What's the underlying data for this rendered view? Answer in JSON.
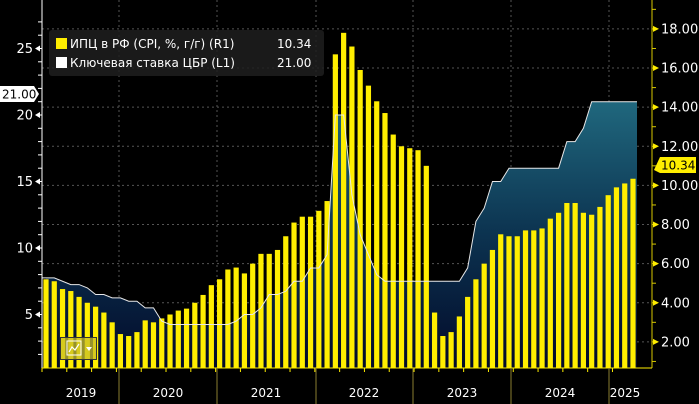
{
  "legend": {
    "cpi": {
      "label": "ИПЦ в РФ (CPI, %, г/г) (R1)",
      "value": "10.34",
      "color": "#ffee00"
    },
    "rate": {
      "label": "Ключевая ставка ЦБР (L1)",
      "value": "21.00",
      "color": "#ffffff"
    }
  },
  "tags": {
    "left": "21.00",
    "right": "10.34"
  },
  "chart_data": {
    "type": "bar+area",
    "title": "",
    "xlabel": "",
    "ylabel": "",
    "x_tick_labels": [
      "2019",
      "2020",
      "2021",
      "2022",
      "2023",
      "2024",
      "2025"
    ],
    "left_axis": {
      "ticks": [
        "5",
        "10",
        "15",
        "20",
        "25"
      ],
      "range": [
        1,
        27.6
      ]
    },
    "right_axis": {
      "ticks": [
        "2.00",
        "4.00",
        "6.00",
        "8.00",
        "10.00",
        "12.00",
        "14.00",
        "16.00",
        "18.00"
      ],
      "range": [
        0.65,
        19.5
      ]
    },
    "period": "monthly, Apr 2019 – Mar 2025",
    "series": [
      {
        "name": "ИПЦ в РФ (CPI, %, г/г) (R1)",
        "type": "bar",
        "axis": "right",
        "color": "#ffee00",
        "values": [
          5.2,
          5.1,
          4.7,
          4.6,
          4.3,
          4.0,
          3.8,
          3.5,
          3.0,
          2.4,
          2.3,
          2.5,
          3.1,
          3.0,
          3.2,
          3.4,
          3.6,
          3.7,
          4.0,
          4.4,
          4.9,
          5.2,
          5.7,
          5.8,
          5.5,
          6.0,
          6.5,
          6.5,
          6.7,
          7.4,
          8.1,
          8.4,
          8.4,
          8.7,
          9.2,
          16.7,
          17.8,
          17.1,
          15.9,
          15.1,
          14.3,
          13.7,
          12.6,
          12.0,
          11.9,
          11.8,
          11.0,
          3.5,
          2.3,
          2.5,
          3.3,
          4.3,
          5.2,
          6.0,
          6.7,
          7.5,
          7.4,
          7.4,
          7.7,
          7.7,
          7.8,
          8.3,
          8.6,
          9.1,
          9.1,
          8.6,
          8.5,
          8.9,
          9.5,
          9.9,
          10.1,
          10.34
        ]
      },
      {
        "name": "Ключевая ставка ЦБР (L1)",
        "type": "area",
        "axis": "left",
        "color": "#ffffff",
        "values": [
          7.75,
          7.75,
          7.5,
          7.25,
          7.25,
          7.0,
          6.5,
          6.5,
          6.25,
          6.25,
          6.0,
          6.0,
          5.5,
          5.5,
          4.5,
          4.25,
          4.25,
          4.25,
          4.25,
          4.25,
          4.25,
          4.25,
          4.25,
          4.5,
          5.0,
          5.0,
          5.5,
          6.5,
          6.5,
          6.75,
          7.5,
          7.5,
          8.5,
          8.5,
          9.5,
          20.0,
          20.0,
          14.0,
          11.0,
          9.5,
          8.0,
          7.5,
          7.5,
          7.5,
          7.5,
          7.5,
          7.5,
          7.5,
          7.5,
          7.5,
          7.5,
          8.5,
          12.0,
          13.0,
          15.0,
          15.0,
          16.0,
          16.0,
          16.0,
          16.0,
          16.0,
          16.0,
          16.0,
          18.0,
          18.0,
          19.0,
          21.0,
          21.0,
          21.0,
          21.0,
          21.0,
          21.0
        ]
      }
    ]
  }
}
